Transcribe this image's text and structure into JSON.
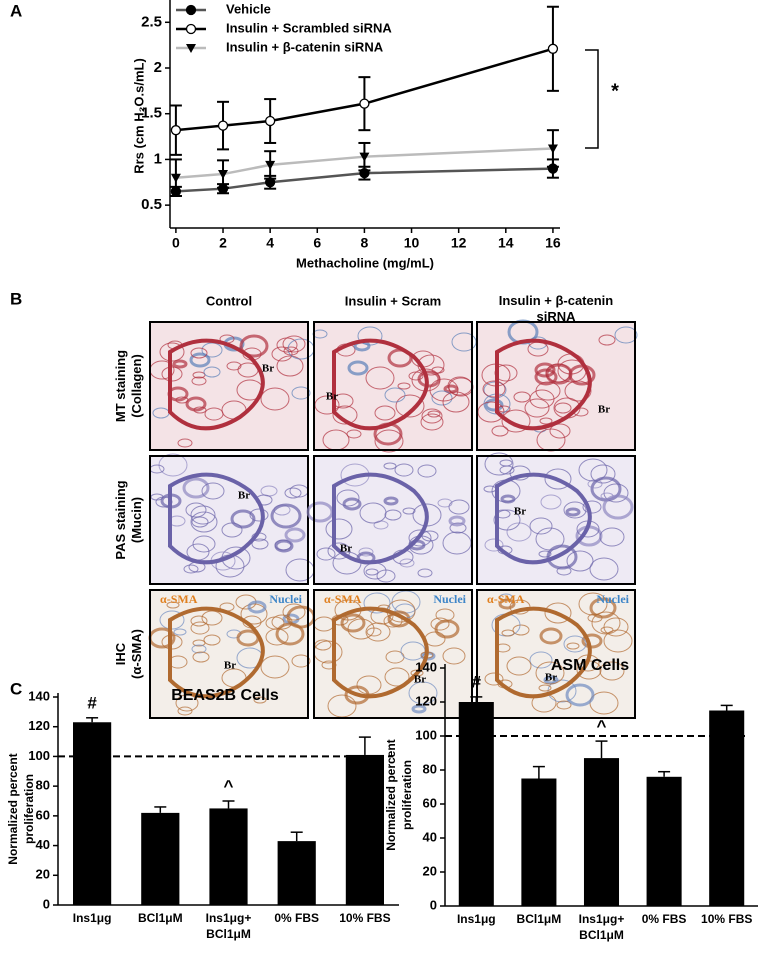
{
  "panel_labels": [
    "A",
    "B",
    "C"
  ],
  "micrographs": {
    "columns": [
      "Control",
      "Insulin + Scram",
      "Insulin + β-catenin\nsiRNA"
    ],
    "rows": [
      "MT staining\n(Collagen)",
      "PAS staining\n(Mucin)",
      "IHC\n(α-SMA)"
    ],
    "cells": [
      [
        [
          "Br"
        ],
        [
          "Br"
        ],
        [
          "Br"
        ]
      ],
      [
        [
          "Br"
        ],
        [
          "Br"
        ],
        [
          "Br"
        ]
      ],
      [
        [
          "α-SMA",
          "Nuclei",
          "Br"
        ],
        [
          "α-SMA",
          "Nuclei",
          "Br"
        ],
        [
          "α-SMA",
          "Nuclei",
          "Br"
        ]
      ]
    ]
  },
  "chart_data": [
    {
      "type": "line",
      "y_label": "Rrs (cm H₂O.s/mL)",
      "x_label": "Methacholine (mg/mL)",
      "x": [
        0,
        2,
        4,
        8,
        16
      ],
      "xlim": [
        -0.25,
        16.3
      ],
      "xticks": [
        0,
        2,
        4,
        6,
        8,
        10,
        12,
        14,
        16
      ],
      "ylim": [
        0.25,
        2.7
      ],
      "yticks": [
        0.5,
        1.0,
        1.5,
        2.0,
        2.5
      ],
      "annotation": "*",
      "legend": "upper left",
      "series": [
        {
          "name": "Vehicle",
          "color": "#555555",
          "marker": "circle",
          "values": [
            0.65,
            0.68,
            0.75,
            0.85,
            0.9
          ],
          "errors": [
            0.05,
            0.05,
            0.07,
            0.07,
            0.1
          ]
        },
        {
          "name": "Insulin + Scrambled siRNA",
          "color": "#000000",
          "marker": "open-circle",
          "values": [
            1.32,
            1.37,
            1.42,
            1.61,
            2.21
          ],
          "errors": [
            0.27,
            0.26,
            0.24,
            0.29,
            0.46
          ]
        },
        {
          "name": "Insulin + β-catenin siRNA",
          "color": "#bbbbbb",
          "marker": "triangle-down",
          "values": [
            0.8,
            0.84,
            0.94,
            1.03,
            1.12
          ],
          "errors": [
            0.2,
            0.15,
            0.15,
            0.15,
            0.2
          ]
        }
      ]
    },
    {
      "type": "bar",
      "title": "BEAS2B Cells",
      "y_label": "Normalized percent\nproliferation",
      "categories": [
        "Ins1μg",
        "BCl1μM",
        "Ins1μg+\nBCl1μM",
        "0% FBS",
        "10% FBS"
      ],
      "values": [
        123,
        62,
        65,
        43,
        101
      ],
      "errors": [
        3,
        4,
        5,
        6,
        12
      ],
      "color": "#000000",
      "value_annotations": [
        "#",
        null,
        "^",
        null,
        null
      ],
      "reference_line": 100,
      "ylim": [
        0,
        140
      ],
      "yticks": [
        0,
        20,
        40,
        60,
        80,
        100,
        120,
        140
      ]
    },
    {
      "type": "bar",
      "title": "ASM Cells",
      "y_label": "Normalized percent\nproliferation",
      "categories": [
        "Ins1μg",
        "BCl1μM",
        "Ins1μg+\nBCl1μM",
        "0% FBS",
        "10% FBS"
      ],
      "values": [
        120,
        75,
        87,
        76,
        115
      ],
      "errors": [
        3,
        7,
        10,
        3,
        3
      ],
      "color": "#000000",
      "value_annotations": [
        "#",
        null,
        "^",
        null,
        null
      ],
      "reference_line": 100,
      "ylim": [
        0,
        140
      ],
      "yticks": [
        0,
        20,
        40,
        60,
        80,
        100,
        120,
        140
      ]
    }
  ]
}
